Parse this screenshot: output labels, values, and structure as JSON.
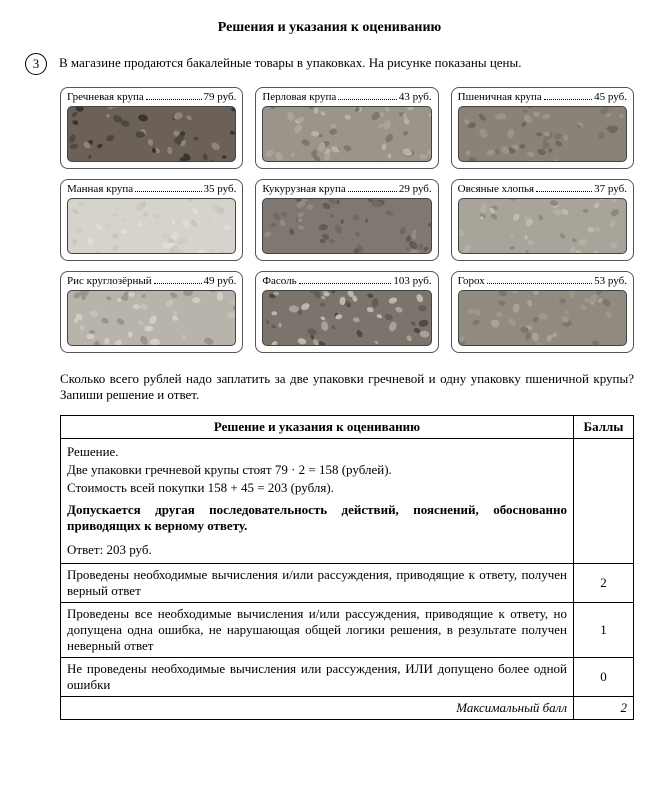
{
  "title": "Решения и указания к оцениванию",
  "task_number": "3",
  "task_intro": "В магазине продаются бакалейные товары в упаковках. На рисунке показаны цены.",
  "products": [
    {
      "name": "Гречневая крупа",
      "price": "79 руб.",
      "bg": "#6b6158",
      "spots": [
        "#3a342e",
        "#8d847a",
        "#4f4841"
      ]
    },
    {
      "name": "Перловая крупа",
      "price": "43 руб.",
      "bg": "#9a948a",
      "spots": [
        "#b8b2a6",
        "#7d786f",
        "#aba499"
      ]
    },
    {
      "name": "Пшеничная крупа",
      "price": "45 руб.",
      "bg": "#8a8278",
      "spots": [
        "#6e675e",
        "#9c9488",
        "#7a7369"
      ]
    },
    {
      "name": "Манная крупа",
      "price": "35 руб.",
      "bg": "#d6d2cc",
      "spots": [
        "#cac5be",
        "#e0dcd6",
        "#d0cbc4"
      ]
    },
    {
      "name": "Кукурузная крупа",
      "price": "29 руб.",
      "bg": "#7e7870",
      "spots": [
        "#615b54",
        "#938c82",
        "#6f6961"
      ]
    },
    {
      "name": "Овсяные хлопья",
      "price": "37 руб.",
      "bg": "#a9a49a",
      "spots": [
        "#c0baae",
        "#8e8980",
        "#b5afa3"
      ]
    },
    {
      "name": "Рис круглозёрный",
      "price": "49 руб.",
      "bg": "#b8b4ac",
      "spots": [
        "#d2cec5",
        "#9a968e",
        "#c6c1b8"
      ]
    },
    {
      "name": "Фасоль",
      "price": "103 руб.",
      "bg": "#7a746c",
      "spots": [
        "#4e4943",
        "#a8a196",
        "#635d56",
        "#beb7ab"
      ]
    },
    {
      "name": "Горох",
      "price": "53 руб.",
      "bg": "#918a7f",
      "spots": [
        "#a9a295",
        "#7c766c",
        "#9e978b"
      ]
    }
  ],
  "question": "Сколько всего рублей надо заплатить за две упаковки гречневой и одну упаковку пшеничной крупы? Запиши решение и ответ.",
  "rubric": {
    "header_main": "Решение и указания к оцениванию",
    "header_score": "Баллы",
    "solution_label": "Решение.",
    "step1": "Две упаковки гречневой крупы стоят  79 · 2 = 158  (рублей).",
    "step2": "Стоимость всей покупки 158 + 45 = 203  (рубля).",
    "note": "Допускается другая последовательность действий, пояснений, обоснованно приводящих к верному ответу.",
    "answer": "Ответ: 203 руб.",
    "criteria": [
      {
        "text": "Проведены необходимые вычисления и/или рассуждения, приводящие к ответу, получен верный ответ",
        "score": "2"
      },
      {
        "text": "Проведены все необходимые вычисления и/или рассуждения, приводящие к ответу, но допущена одна ошибка, не нарушающая общей логики решения, в результате получен неверный ответ",
        "score": "1"
      },
      {
        "text": "Не проведены необходимые вычисления или рассуждения, ИЛИ допущено более одной ошибки",
        "score": "0"
      }
    ],
    "max_label": "Максимальный балл",
    "max_score": "2"
  }
}
